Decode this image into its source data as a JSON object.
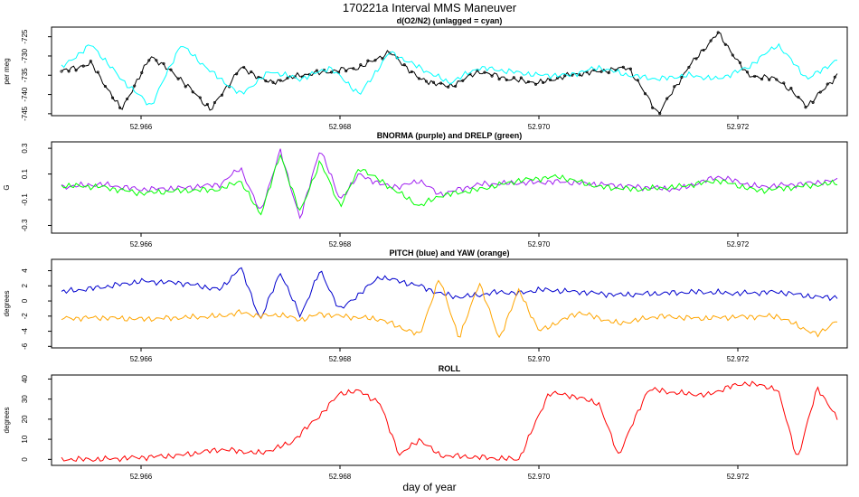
{
  "figure": {
    "title": "170221a   Interval MMS Maneuver",
    "xlabel": "day of year"
  },
  "chart_data": [
    {
      "type": "line",
      "title": "d(O2/N2) (unlagged = cyan)",
      "ylabel": "per meg",
      "xlim": [
        52.9651,
        52.9731
      ],
      "ylim": [
        -745.5,
        -722.5
      ],
      "yticks": [
        -745,
        -740,
        -735,
        -730,
        -725
      ],
      "ytick_labels": [
        "-745",
        "-740",
        "-735",
        "-730",
        "-725"
      ],
      "xticks": [
        52.966,
        52.968,
        52.97,
        52.972
      ],
      "xtick_labels": [
        "52.966",
        "52.968",
        "52.970",
        "52.972"
      ],
      "x": [
        52.9652,
        52.9655,
        52.9658,
        52.9661,
        52.9664,
        52.9667,
        52.967,
        52.9673,
        52.9676,
        52.9679,
        52.9682,
        52.9685,
        52.9688,
        52.9691,
        52.9694,
        52.9697,
        52.97,
        52.9703,
        52.9706,
        52.9709,
        52.9712,
        52.9715,
        52.9718,
        52.9721,
        52.9724,
        52.9727,
        52.973
      ],
      "series": [
        {
          "key": "lagged",
          "color": "#000000",
          "markers": true,
          "values": [
            -734,
            -732,
            -744,
            -730,
            -736,
            -744,
            -733,
            -737,
            -735,
            -734,
            -733,
            -729,
            -736,
            -738,
            -734,
            -736,
            -737,
            -735,
            -734,
            -733,
            -745,
            -733,
            -724,
            -735,
            -736,
            -743,
            -735
          ]
        },
        {
          "key": "unlagged",
          "color": "#00ffff",
          "markers": false,
          "values": [
            -733,
            -727,
            -736,
            -743,
            -727,
            -734,
            -740,
            -734,
            -736,
            -733,
            -740,
            -729,
            -733,
            -737,
            -733,
            -734,
            -735,
            -735,
            -733,
            -735,
            -736,
            -735,
            -736,
            -733,
            -727,
            -736,
            -731
          ]
        }
      ]
    },
    {
      "type": "line",
      "title": "BNORMA (purple) and DRELP (green)",
      "ylabel": "G",
      "xlim": [
        52.9651,
        52.9731
      ],
      "ylim": [
        -0.36,
        0.35
      ],
      "yticks": [
        -0.3,
        -0.1,
        0.1,
        0.3
      ],
      "ytick_labels": [
        "-0.3",
        "-0.1",
        "0.1",
        "0.3"
      ],
      "xticks": [
        52.966,
        52.968,
        52.97,
        52.972
      ],
      "xtick_labels": [
        "52.966",
        "52.968",
        "52.970",
        "52.972"
      ],
      "x": [
        52.9652,
        52.9656,
        52.966,
        52.9664,
        52.9668,
        52.967,
        52.9672,
        52.9674,
        52.9676,
        52.9678,
        52.968,
        52.9682,
        52.9684,
        52.9686,
        52.9688,
        52.969,
        52.9694,
        52.9698,
        52.9702,
        52.9706,
        52.971,
        52.9714,
        52.9718,
        52.9722,
        52.9726,
        52.973
      ],
      "series": [
        {
          "key": "BNORMA",
          "color": "#a020f0",
          "values": [
            0.0,
            0.02,
            -0.02,
            -0.01,
            0.02,
            0.15,
            -0.2,
            0.28,
            -0.25,
            0.3,
            -0.1,
            0.1,
            0.02,
            0.0,
            0.05,
            -0.06,
            0.02,
            0.03,
            0.04,
            0.02,
            0.0,
            -0.02,
            0.08,
            0.0,
            0.02,
            0.05
          ]
        },
        {
          "key": "DRELP",
          "color": "#00ff00",
          "values": [
            0.01,
            0.0,
            -0.05,
            -0.03,
            -0.02,
            0.05,
            -0.22,
            0.25,
            -0.2,
            0.2,
            -0.15,
            0.15,
            0.05,
            -0.05,
            -0.15,
            -0.07,
            -0.02,
            0.05,
            0.08,
            0.0,
            -0.02,
            0.0,
            0.05,
            -0.03,
            0.0,
            0.03
          ]
        }
      ]
    },
    {
      "type": "line",
      "title": "PITCH (blue) and YAW (orange)",
      "ylabel": "degrees",
      "xlim": [
        52.9651,
        52.9731
      ],
      "ylim": [
        -6.2,
        5.5
      ],
      "yticks": [
        -6,
        -4,
        -2,
        0,
        2,
        4
      ],
      "ytick_labels": [
        "-6",
        "-4",
        "-2",
        "0",
        "2",
        "4"
      ],
      "xticks": [
        52.966,
        52.968,
        52.97,
        52.972
      ],
      "xtick_labels": [
        "52.966",
        "52.968",
        "52.970",
        "52.972"
      ],
      "x": [
        52.9652,
        52.9656,
        52.966,
        52.9664,
        52.9668,
        52.967,
        52.9672,
        52.9674,
        52.9676,
        52.9678,
        52.968,
        52.9684,
        52.9688,
        52.969,
        52.9692,
        52.9694,
        52.9696,
        52.9698,
        52.97,
        52.9704,
        52.9708,
        52.9712,
        52.9716,
        52.972,
        52.9724,
        52.9728,
        52.973
      ],
      "series": [
        {
          "key": "PITCH",
          "color": "#0000cd",
          "values": [
            1.2,
            1.8,
            2.6,
            2.4,
            1.5,
            4.5,
            -2.5,
            3.8,
            -2.0,
            4.0,
            -1.2,
            3.2,
            2.0,
            1.0,
            0.5,
            0.8,
            1.2,
            1.0,
            1.5,
            1.2,
            0.8,
            1.0,
            1.2,
            1.0,
            1.2,
            0.5,
            0.5
          ]
        },
        {
          "key": "YAW",
          "color": "#ffa500",
          "values": [
            -2.3,
            -2.2,
            -2.4,
            -2.2,
            -2.0,
            -1.5,
            -2.0,
            -1.8,
            -2.5,
            -1.7,
            -2.0,
            -2.4,
            -4.5,
            3.0,
            -5.0,
            2.5,
            -5.0,
            1.5,
            -4.0,
            -1.5,
            -3.0,
            -2.0,
            -2.3,
            -2.1,
            -2.0,
            -4.5,
            -2.5
          ]
        }
      ]
    },
    {
      "type": "line",
      "title": "ROLL",
      "ylabel": "degrees",
      "xlim": [
        52.9651,
        52.9731
      ],
      "ylim": [
        -3,
        42
      ],
      "yticks": [
        0,
        10,
        20,
        30,
        40
      ],
      "ytick_labels": [
        "0",
        "10",
        "20",
        "30",
        "40"
      ],
      "xticks": [
        52.966,
        52.968,
        52.97,
        52.972
      ],
      "xtick_labels": [
        "52.966",
        "52.968",
        "52.970",
        "52.972"
      ],
      "x": [
        52.9652,
        52.9656,
        52.966,
        52.9664,
        52.9668,
        52.9672,
        52.9675,
        52.9678,
        52.968,
        52.9682,
        52.9684,
        52.9686,
        52.9688,
        52.969,
        52.9694,
        52.9698,
        52.9701,
        52.9703,
        52.9706,
        52.9708,
        52.9711,
        52.9714,
        52.9717,
        52.9719,
        52.9721,
        52.9724,
        52.9726,
        52.9728,
        52.973
      ],
      "series": [
        {
          "key": "ROLL",
          "color": "#ff0000",
          "values": [
            0,
            0,
            1,
            2,
            5,
            3,
            8,
            22,
            33,
            34,
            28,
            2,
            10,
            2,
            1,
            0,
            33,
            32,
            28,
            2,
            35,
            33,
            32,
            36,
            38,
            35,
            0,
            36,
            20
          ]
        }
      ]
    }
  ]
}
